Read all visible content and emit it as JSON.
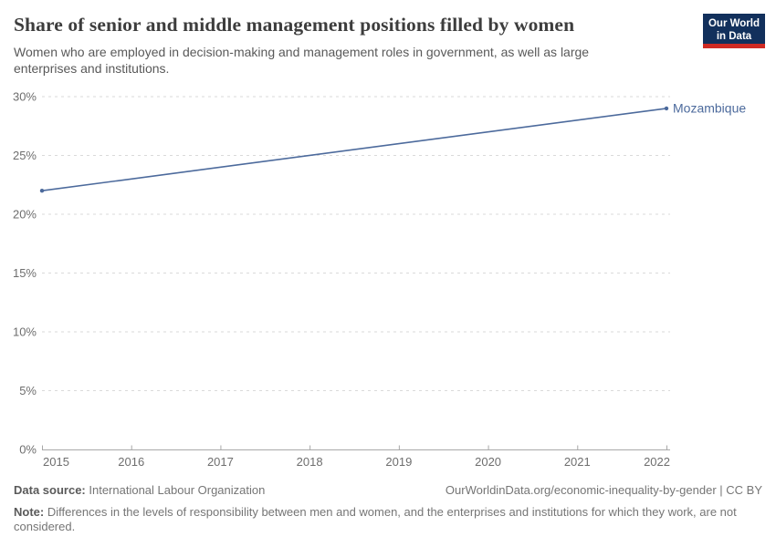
{
  "header": {
    "title": "Share of senior and middle management positions filled by women",
    "subtitle": "Women who are employed in decision-making and management roles in government, as well as large enterprises and institutions.",
    "logo": {
      "line1": "Our World",
      "line2": "in Data",
      "bg_color": "#12305c",
      "accent_color": "#cf2a23"
    }
  },
  "chart_data": {
    "type": "line",
    "title": "Share of senior and middle management positions filled by women",
    "subtitle": "Women who are employed in decision-making and management roles in government, as well as large enterprises and institutions.",
    "series": [
      {
        "name": "Mozambique",
        "color": "#4c6a9c",
        "points": [
          {
            "x": 2015,
            "y": 22
          },
          {
            "x": 2022,
            "y": 29
          }
        ]
      }
    ],
    "x_ticks": [
      2015,
      2016,
      2017,
      2018,
      2019,
      2020,
      2021,
      2022
    ],
    "x_tick_labels": [
      "2015",
      "2016",
      "2017",
      "2018",
      "2019",
      "2020",
      "2021",
      "2022"
    ],
    "y_ticks": [
      0,
      5,
      10,
      15,
      20,
      25,
      30
    ],
    "y_tick_labels": [
      "0%",
      "5%",
      "10%",
      "15%",
      "20%",
      "25%",
      "30%"
    ],
    "xlim": [
      2015,
      2022
    ],
    "ylim": [
      0,
      30
    ],
    "xlabel": "",
    "ylabel": "",
    "grid": "horizontal-dashed",
    "legend_position": "end-of-line-label",
    "grid_color": "#dadada",
    "axis_color": "#a8a8a8"
  },
  "footer": {
    "datasource_label": "Data source:",
    "datasource_value": "International Labour Organization",
    "attribution": "OurWorldinData.org/economic-inequality-by-gender | CC BY",
    "note_label": "Note:",
    "note_value": "Differences in the levels of responsibility between men and women, and the enterprises and institutions for which they work, are not considered."
  }
}
